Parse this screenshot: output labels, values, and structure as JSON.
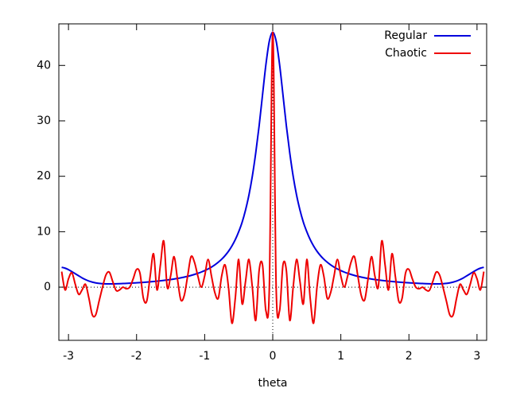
{
  "chart_data": {
    "type": "line",
    "x_label": "theta",
    "x": [
      -3.1,
      -3.05,
      -3,
      -2.95,
      -2.9,
      -2.85,
      -2.8,
      -2.75,
      -2.7,
      -2.65,
      -2.6,
      -2.55,
      -2.5,
      -2.45,
      -2.4,
      -2.35,
      -2.3,
      -2.25,
      -2.2,
      -2.15,
      -2.1,
      -2.05,
      -2,
      -1.95,
      -1.9,
      -1.85,
      -1.8,
      -1.75,
      -1.7,
      -1.65,
      -1.6,
      -1.55,
      -1.5,
      -1.45,
      -1.4,
      -1.35,
      -1.3,
      -1.25,
      -1.2,
      -1.15,
      -1.1,
      -1.05,
      -1,
      -0.95,
      -0.9,
      -0.85,
      -0.8,
      -0.75,
      -0.7,
      -0.65,
      -0.6,
      -0.55,
      -0.5,
      -0.45,
      -0.4,
      -0.35,
      -0.3,
      -0.25,
      -0.2,
      -0.15,
      -0.1,
      -0.05,
      0,
      0.05,
      0.1,
      0.15,
      0.2,
      0.25,
      0.3,
      0.35,
      0.4,
      0.45,
      0.5,
      0.55,
      0.6,
      0.65,
      0.7,
      0.75,
      0.8,
      0.85,
      0.9,
      0.95,
      1,
      1.05,
      1.1,
      1.15,
      1.2,
      1.25,
      1.3,
      1.35,
      1.4,
      1.45,
      1.5,
      1.55,
      1.6,
      1.65,
      1.7,
      1.75,
      1.8,
      1.85,
      1.9,
      1.95,
      2,
      2.05,
      2.1,
      2.15,
      2.2,
      2.25,
      2.3,
      2.35,
      2.4,
      2.45,
      2.5,
      2.55,
      2.6,
      2.65,
      2.7,
      2.75,
      2.8,
      2.85,
      2.9,
      2.95,
      3,
      3.05,
      3.1
    ],
    "series": [
      {
        "name": "Regular",
        "color": "#0000dd",
        "values": [
          3.58,
          3.42,
          3.15,
          2.8,
          2.42,
          2.04,
          1.67,
          1.36,
          1.1,
          0.91,
          0.77,
          0.67,
          0.62,
          0.59,
          0.59,
          0.59,
          0.6,
          0.62,
          0.65,
          0.68,
          0.71,
          0.74,
          0.78,
          0.82,
          0.86,
          0.91,
          0.96,
          1.02,
          1.08,
          1.14,
          1.21,
          1.29,
          1.37,
          1.47,
          1.57,
          1.68,
          1.81,
          1.95,
          2.11,
          2.29,
          2.49,
          2.72,
          2.98,
          3.28,
          3.62,
          4.02,
          4.49,
          5.04,
          5.69,
          6.47,
          7.42,
          8.57,
          10.0,
          11.7,
          13.9,
          16.6,
          20.0,
          24.2,
          29.1,
          34.7,
          40.2,
          44.4,
          46,
          44.4,
          40.2,
          34.7,
          29.1,
          24.2,
          20.0,
          16.6,
          13.9,
          11.7,
          10.0,
          8.57,
          7.42,
          6.47,
          5.69,
          5.04,
          4.49,
          4.02,
          3.62,
          3.28,
          2.98,
          2.72,
          2.49,
          2.29,
          2.11,
          1.95,
          1.81,
          1.68,
          1.57,
          1.47,
          1.37,
          1.29,
          1.21,
          1.14,
          1.08,
          1.02,
          0.96,
          0.91,
          0.86,
          0.82,
          0.78,
          0.74,
          0.71,
          0.68,
          0.65,
          0.62,
          0.6,
          0.59,
          0.59,
          0.59,
          0.62,
          0.67,
          0.77,
          0.91,
          1.1,
          1.36,
          1.67,
          2.04,
          2.42,
          2.8,
          3.15,
          3.42,
          3.58
        ]
      },
      {
        "name": "Chaotic",
        "color": "#ee0000",
        "values": [
          2.8,
          -0.5,
          1.5,
          2.6,
          0.5,
          -1.3,
          -0.5,
          0.5,
          -2,
          -5,
          -5,
          -2.5,
          0,
          2.2,
          2.7,
          1,
          -0.6,
          -0.5,
          0,
          -0.3,
          0,
          1.5,
          3.2,
          2.5,
          -2,
          -2.5,
          2,
          6,
          -0.5,
          4,
          8.3,
          0,
          2,
          5.5,
          1.5,
          -2.3,
          -1.5,
          2,
          5.5,
          4.5,
          2,
          0,
          2,
          5,
          2,
          -1,
          -2,
          2,
          4,
          0,
          -6.5,
          -2,
          5,
          -3,
          1,
          5,
          0,
          -6,
          3,
          4,
          -4.3,
          0,
          46,
          0,
          -4.3,
          4,
          3,
          -6,
          0,
          5,
          1,
          -3,
          5,
          -2,
          -6.5,
          0,
          4,
          2,
          -2,
          -1,
          2,
          5,
          2,
          0,
          2,
          4.5,
          5.5,
          2,
          -1.5,
          -2.3,
          1.5,
          5.5,
          2,
          0,
          8.3,
          4,
          -0.5,
          6,
          2,
          -2.5,
          -2,
          2.5,
          3.2,
          1.5,
          0,
          -0.3,
          0,
          -0.5,
          -0.6,
          1,
          2.7,
          2.2,
          0,
          -2.5,
          -5,
          -5,
          -2,
          0.5,
          -0.5,
          -1.3,
          0.5,
          2.6,
          1.5,
          -0.5,
          2.8
        ]
      }
    ],
    "xlim": [
      -3.14159,
      3.14159
    ],
    "xticks": [
      -3,
      -2,
      -1,
      0,
      1,
      2,
      3
    ],
    "ylim": [
      -9.6,
      47.5
    ],
    "yticks": [
      0,
      10,
      20,
      30,
      40
    ],
    "zeroaxis": true,
    "legend": "top right"
  }
}
